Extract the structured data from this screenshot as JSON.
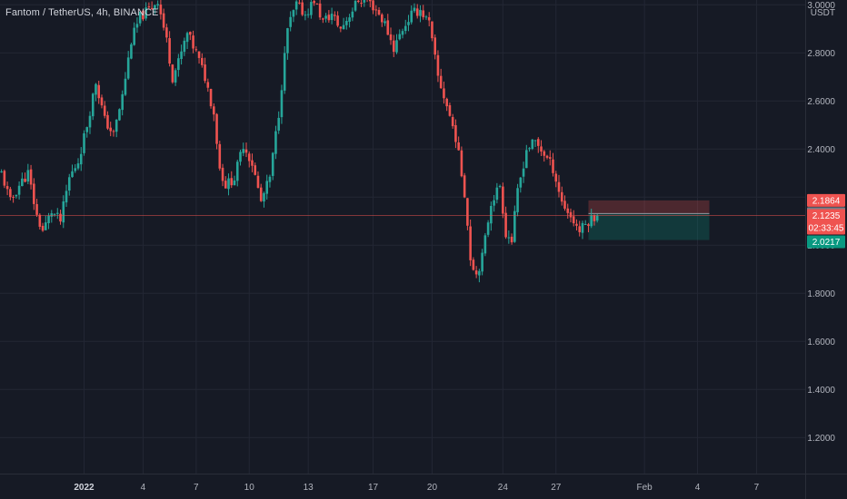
{
  "symbol_title": "Fantom / TetherUS, 4h, BINANCE",
  "colors": {
    "background": "#161a25",
    "grid": "#232734",
    "up": "#26a69a",
    "down": "#ef5350",
    "axis_text": "#b2b5be"
  },
  "chart_data": {
    "type": "candlestick",
    "title": "Fantom / TetherUS, 4h, BINANCE",
    "y_unit": "USDT",
    "ylim": [
      1.05,
      3.02
    ],
    "y_ticks": [
      "3.0000",
      "2.8000",
      "2.6000",
      "2.4000",
      "2.2000",
      "2.0000",
      "1.8000",
      "1.6000",
      "1.4000",
      "1.2000"
    ],
    "y_tick_values": [
      3.0,
      2.8,
      2.6,
      2.4,
      2.2,
      2.0,
      1.8,
      1.6,
      1.4,
      1.2
    ],
    "x_ticks": [
      {
        "label": "2022",
        "bold": true
      },
      {
        "label": "4",
        "bold": false
      },
      {
        "label": "7",
        "bold": false
      },
      {
        "label": "10",
        "bold": false
      },
      {
        "label": "13",
        "bold": false
      },
      {
        "label": "17",
        "bold": false
      },
      {
        "label": "20",
        "bold": false
      },
      {
        "label": "24",
        "bold": false
      },
      {
        "label": "27",
        "bold": false
      },
      {
        "label": "Feb",
        "bold": false
      },
      {
        "label": "4",
        "bold": false
      },
      {
        "label": "7",
        "bold": false
      }
    ],
    "x_tick_bars": [
      28,
      48,
      66,
      84,
      104,
      126,
      146,
      170,
      188,
      218,
      236,
      256
    ],
    "current_price": 2.1235,
    "countdown": "02:33:45",
    "position": {
      "stop_price": 2.1864,
      "entry_price": 2.1315,
      "target_price": 2.0217,
      "start_bar": 199,
      "end_bar": 240
    },
    "price_tags": [
      {
        "key": "stop",
        "label": "2.1864",
        "value": 2.1864,
        "color": "#ef5350"
      },
      {
        "key": "entry",
        "label": "2.1315",
        "value": 2.1315,
        "color": "#787b86"
      },
      {
        "key": "current",
        "label": "2.1235",
        "value": 2.1235,
        "color": "#ef5350"
      },
      {
        "key": "target",
        "label": "2.0217",
        "value": 2.0217,
        "color": "#089981"
      }
    ],
    "close_path": [
      [
        0,
        2.3
      ],
      [
        3,
        2.18
      ],
      [
        6,
        2.25
      ],
      [
        9,
        2.3
      ],
      [
        12,
        2.12
      ],
      [
        14,
        2.06
      ],
      [
        17,
        2.14
      ],
      [
        20,
        2.1
      ],
      [
        23,
        2.28
      ],
      [
        26,
        2.35
      ],
      [
        29,
        2.5
      ],
      [
        32,
        2.68
      ],
      [
        35,
        2.52
      ],
      [
        38,
        2.46
      ],
      [
        41,
        2.62
      ],
      [
        44,
        2.85
      ],
      [
        47,
        2.95
      ],
      [
        50,
        2.98
      ],
      [
        53,
        3.02
      ],
      [
        56,
        2.85
      ],
      [
        58,
        2.7
      ],
      [
        60,
        2.76
      ],
      [
        63,
        2.88
      ],
      [
        66,
        2.8
      ],
      [
        69,
        2.7
      ],
      [
        72,
        2.55
      ],
      [
        74,
        2.32
      ],
      [
        76,
        2.25
      ],
      [
        79,
        2.28
      ],
      [
        82,
        2.42
      ],
      [
        85,
        2.34
      ],
      [
        88,
        2.18
      ],
      [
        91,
        2.28
      ],
      [
        94,
        2.55
      ],
      [
        97,
        2.9
      ],
      [
        100,
        3.0
      ],
      [
        103,
        2.96
      ],
      [
        106,
        3.02
      ],
      [
        109,
        2.93
      ],
      [
        112,
        2.96
      ],
      [
        115,
        2.9
      ],
      [
        118,
        2.96
      ],
      [
        121,
        3.02
      ],
      [
        124,
        3.02
      ],
      [
        127,
        2.98
      ],
      [
        130,
        2.92
      ],
      [
        133,
        2.82
      ],
      [
        136,
        2.9
      ],
      [
        139,
        2.96
      ],
      [
        142,
        2.98
      ],
      [
        145,
        2.92
      ],
      [
        148,
        2.7
      ],
      [
        151,
        2.58
      ],
      [
        154,
        2.45
      ],
      [
        157,
        2.22
      ],
      [
        159,
        1.95
      ],
      [
        161,
        1.88
      ],
      [
        163,
        1.95
      ],
      [
        166,
        2.18
      ],
      [
        169,
        2.25
      ],
      [
        171,
        2.05
      ],
      [
        173,
        2.02
      ],
      [
        175,
        2.22
      ],
      [
        178,
        2.4
      ],
      [
        181,
        2.43
      ],
      [
        184,
        2.38
      ],
      [
        187,
        2.32
      ],
      [
        190,
        2.18
      ],
      [
        193,
        2.12
      ],
      [
        196,
        2.06
      ],
      [
        199,
        2.1
      ],
      [
        202,
        2.13
      ]
    ],
    "visible_bars": 273
  }
}
